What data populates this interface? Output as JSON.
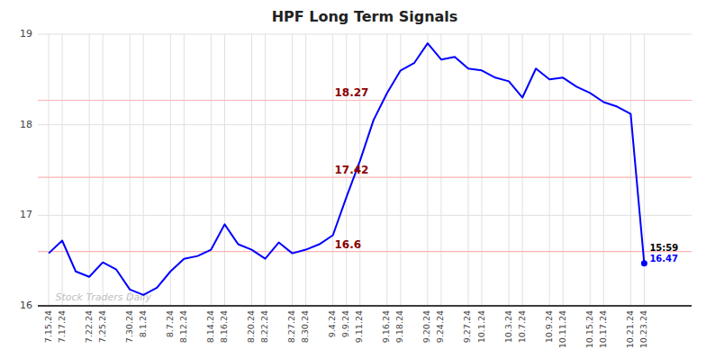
{
  "chart_data": {
    "type": "line",
    "title": "HPF Long Term Signals",
    "categories": [
      "7.15.24",
      "7.17.24",
      null,
      "7.22.24",
      "7.25.24",
      null,
      "7.30.24",
      "8.1.24",
      null,
      "8.7.24",
      "8.12.24",
      null,
      "8.14.24",
      "8.16.24",
      null,
      "8.20.24",
      "8.22.24",
      null,
      "8.27.24",
      "8.30.24",
      null,
      "9.4.24",
      "9.9.24",
      "9.11.24",
      null,
      "9.16.24",
      "9.18.24",
      null,
      "9.20.24",
      "9.24.24",
      null,
      "9.27.24",
      "10.1.24",
      null,
      "10.3.24",
      "10.7.24",
      null,
      "10.9.24",
      "10.11.24",
      null,
      "10.15.24",
      "10.17.24",
      null,
      "10.21.24",
      "10.23.24"
    ],
    "values": [
      16.58,
      16.72,
      16.38,
      16.32,
      16.48,
      16.4,
      16.18,
      16.12,
      16.2,
      16.38,
      16.52,
      16.55,
      16.62,
      16.9,
      16.68,
      16.62,
      16.52,
      16.7,
      16.58,
      16.62,
      16.68,
      16.78,
      17.2,
      17.6,
      18.05,
      18.35,
      18.6,
      18.68,
      18.9,
      18.72,
      18.75,
      18.62,
      18.6,
      18.52,
      18.48,
      18.3,
      18.62,
      18.5,
      18.52,
      18.42,
      18.35,
      18.25,
      18.2,
      18.12,
      16.47
    ],
    "color": "blue",
    "hlines": [
      {
        "value": 16.6,
        "label": "16.6",
        "color": "#ffb3b3"
      },
      {
        "value": 17.42,
        "label": "17.42",
        "color": "#ffb3b3"
      },
      {
        "value": 18.27,
        "label": "18.27",
        "color": "#ffb3b3"
      }
    ],
    "hline_label_color": "#8b0000",
    "annotations": [
      {
        "text": "15:59"
      },
      {
        "text": "16.47"
      }
    ],
    "watermark": "Stock Traders Daily",
    "ylim": [
      16.0,
      19.0
    ],
    "yticks": [
      16,
      17,
      18,
      19
    ],
    "grid": true
  }
}
